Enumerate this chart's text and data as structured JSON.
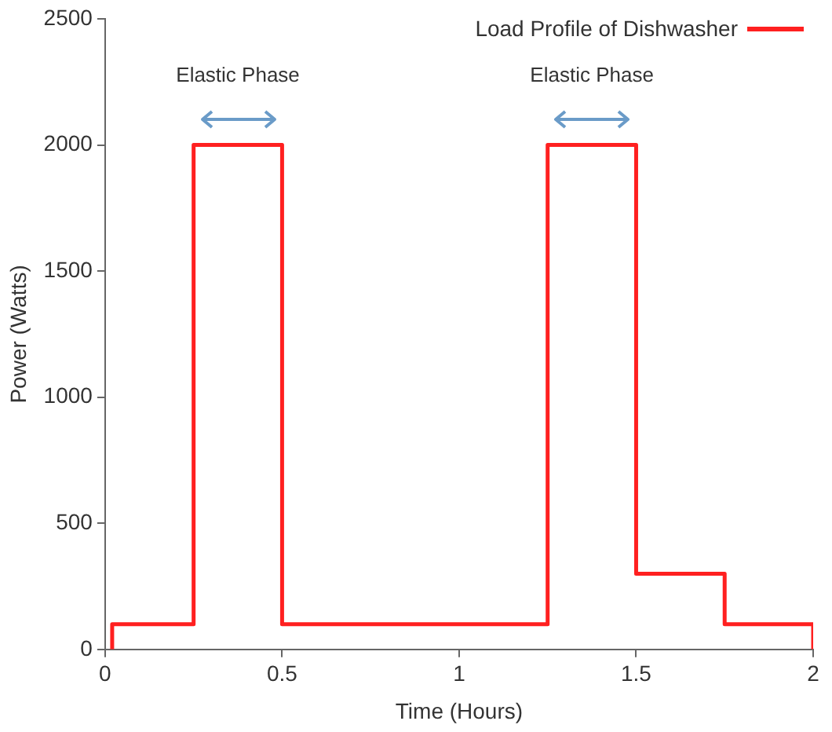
{
  "chart_data": {
    "type": "step",
    "xlabel": "Time (Hours)",
    "ylabel": "Power (Watts)",
    "x": [
      0.02,
      0.02,
      0.25,
      0.5,
      1.25,
      1.5,
      1.75,
      2,
      2
    ],
    "series": [
      {
        "name": "Load Profile of Dishwasher",
        "color": "#ff2020",
        "values": [
          0,
          100,
          2000,
          100,
          2000,
          300,
          100,
          100,
          0
        ]
      }
    ],
    "xlim": [
      0,
      2
    ],
    "xticks": [
      0,
      0.5,
      1,
      1.5,
      2
    ],
    "ylim": [
      0,
      2500
    ],
    "yticks": [
      0,
      500,
      1000,
      1500,
      2000,
      2500
    ],
    "grid": false,
    "legend": "top right",
    "marker": "none",
    "line_style": "solid",
    "annotations": [
      "Elastic Phase",
      "Elastic Phase"
    ]
  }
}
